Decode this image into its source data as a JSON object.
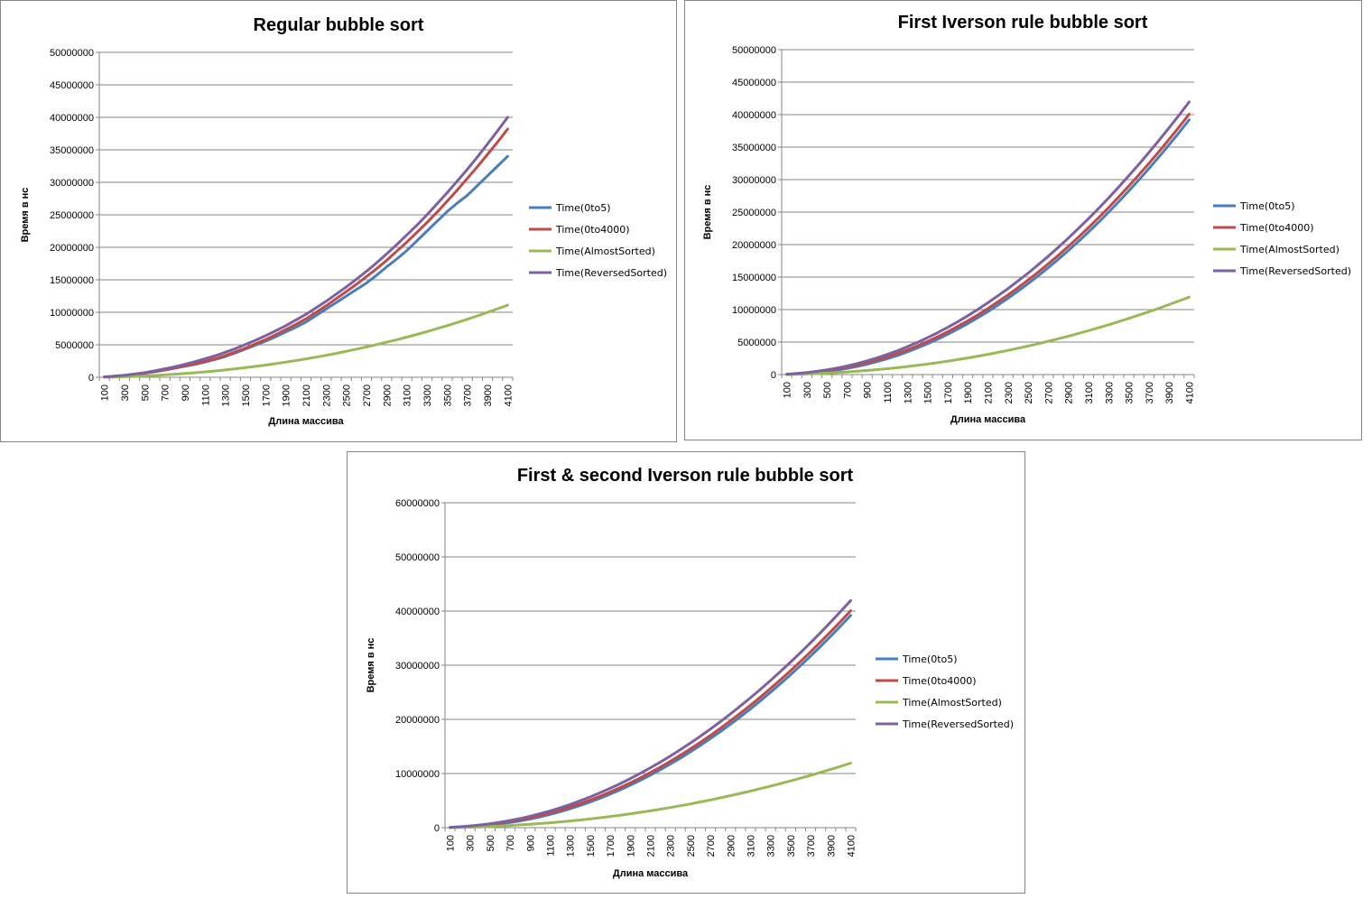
{
  "colors": {
    "s0": "#4a7ebb",
    "s1": "#be4b48",
    "s2": "#98b954",
    "s3": "#7d60a0",
    "grid": "#868686",
    "border": "#868686"
  },
  "chart_data": [
    {
      "type": "line",
      "title": "Regular bubble sort",
      "xlabel": "Длина массива",
      "ylabel": "Время в нс",
      "ylim": [
        0,
        50000000
      ],
      "yticks": [
        "0",
        "5000000",
        "10000000",
        "15000000",
        "20000000",
        "25000000",
        "30000000",
        "35000000",
        "40000000",
        "45000000",
        "50000000"
      ],
      "x_tick_labels": [
        "100",
        "300",
        "500",
        "700",
        "900",
        "1100",
        "1300",
        "1500",
        "1700",
        "1900",
        "2100",
        "2300",
        "2500",
        "2700",
        "2900",
        "3100",
        "3300",
        "3500",
        "3700",
        "3900",
        "4100"
      ],
      "x": [
        100,
        200,
        300,
        400,
        500,
        600,
        700,
        800,
        900,
        1000,
        1100,
        1200,
        1300,
        1400,
        1500,
        1600,
        1700,
        1800,
        1900,
        2000,
        2100,
        2200,
        2300,
        2400,
        2500,
        2600,
        2700,
        2800,
        2900,
        3000,
        3100,
        3200,
        3300,
        3400,
        3500,
        3600,
        3700,
        3800,
        3900,
        4000,
        4100
      ],
      "legend_position": "right",
      "grid": true,
      "series": [
        {
          "name": "Time(0to5)",
          "values": [
            50000,
            150000,
            250000,
            400000,
            600000,
            850000,
            1100000,
            1400000,
            1700000,
            2000000,
            2350000,
            2750000,
            3200000,
            3750000,
            4350000,
            4950000,
            5550000,
            6250000,
            7000000,
            7700000,
            8500000,
            9500000,
            10500000,
            11500000,
            12500000,
            13500000,
            14500000,
            15700000,
            17000000,
            18200000,
            19500000,
            21000000,
            22500000,
            24000000,
            25500000,
            26800000,
            28000000,
            29500000,
            31000000,
            32500000,
            34000000
          ]
        },
        {
          "name": "Time(0to4000)",
          "values": [
            50000,
            160000,
            270000,
            430000,
            640000,
            900000,
            1150000,
            1450000,
            1780000,
            2100000,
            2450000,
            2850000,
            3350000,
            3900000,
            4500000,
            5150000,
            5800000,
            6550000,
            7350000,
            8150000,
            9000000,
            10000000,
            11000000,
            12100000,
            13200000,
            14300000,
            15500000,
            16700000,
            18000000,
            19400000,
            20800000,
            22300000,
            23800000,
            25400000,
            27100000,
            28800000,
            30600000,
            32400000,
            34300000,
            36200000,
            38200000
          ]
        },
        {
          "name": "Time(AlmostSorted)",
          "values": [
            10000,
            40000,
            80000,
            130000,
            200000,
            280000,
            370000,
            470000,
            580000,
            700000,
            830000,
            970000,
            1130000,
            1300000,
            1480000,
            1680000,
            1880000,
            2100000,
            2330000,
            2570000,
            2830000,
            3100000,
            3380000,
            3680000,
            4000000,
            4330000,
            4670000,
            5030000,
            5400000,
            5780000,
            6180000,
            6600000,
            7030000,
            7480000,
            7950000,
            8430000,
            8930000,
            9450000,
            9990000,
            10540000,
            11100000
          ]
        },
        {
          "name": "Time(ReversedSorted)",
          "values": [
            60000,
            180000,
            320000,
            500000,
            720000,
            1000000,
            1300000,
            1620000,
            2000000,
            2400000,
            2850000,
            3300000,
            3850000,
            4400000,
            5050000,
            5700000,
            6400000,
            7150000,
            7950000,
            8800000,
            9700000,
            10700000,
            11700000,
            12800000,
            13900000,
            15100000,
            16300000,
            17600000,
            19000000,
            20400000,
            21900000,
            23400000,
            25000000,
            26700000,
            28400000,
            30200000,
            32000000,
            33900000,
            35900000,
            37900000,
            40000000
          ]
        }
      ]
    },
    {
      "type": "line",
      "title": "First Iverson rule bubble sort",
      "xlabel": "Длина массива",
      "ylabel": "Время в нс",
      "ylim": [
        0,
        50000000
      ],
      "yticks": [
        "0",
        "5000000",
        "10000000",
        "15000000",
        "20000000",
        "25000000",
        "30000000",
        "35000000",
        "40000000",
        "45000000",
        "50000000"
      ],
      "x_tick_labels": [
        "100",
        "300",
        "500",
        "700",
        "900",
        "1100",
        "1300",
        "1500",
        "1700",
        "1900",
        "2100",
        "2300",
        "2500",
        "2700",
        "2900",
        "3100",
        "3300",
        "3500",
        "3700",
        "3900",
        "4100"
      ],
      "x": [
        100,
        200,
        300,
        400,
        500,
        600,
        700,
        800,
        900,
        1000,
        1100,
        1200,
        1300,
        1400,
        1500,
        1600,
        1700,
        1800,
        1900,
        2000,
        2100,
        2200,
        2300,
        2400,
        2500,
        2600,
        2700,
        2800,
        2900,
        3000,
        3100,
        3200,
        3300,
        3400,
        3500,
        3600,
        3700,
        3800,
        3900,
        4000,
        4100
      ],
      "legend_position": "right",
      "grid": true,
      "series": [
        {
          "name": "Time(0to5)",
          "values": [
            30000,
            100000,
            200000,
            330000,
            500000,
            700000,
            950000,
            1250000,
            1600000,
            2000000,
            2450000,
            2950000,
            3500000,
            4100000,
            4750000,
            5450000,
            6200000,
            7000000,
            7850000,
            8750000,
            9700000,
            10700000,
            11750000,
            12850000,
            14000000,
            15200000,
            16450000,
            17750000,
            19100000,
            20500000,
            21950000,
            23450000,
            25000000,
            26600000,
            28250000,
            29950000,
            31700000,
            33500000,
            35350000,
            37250000,
            39200000
          ]
        },
        {
          "name": "Time(0to4000)",
          "values": [
            40000,
            130000,
            260000,
            420000,
            620000,
            860000,
            1140000,
            1460000,
            1830000,
            2250000,
            2720000,
            3240000,
            3810000,
            4430000,
            5100000,
            5820000,
            6590000,
            7410000,
            8280000,
            9200000,
            10170000,
            11190000,
            12260000,
            13380000,
            14550000,
            15770000,
            17040000,
            18360000,
            19730000,
            21150000,
            22620000,
            24140000,
            25710000,
            27330000,
            29000000,
            30720000,
            32490000,
            34310000,
            36180000,
            38100000,
            40070000
          ]
        },
        {
          "name": "Time(AlmostSorted)",
          "values": [
            10000,
            40000,
            80000,
            140000,
            220000,
            300000,
            400000,
            510000,
            630000,
            760000,
            900000,
            1060000,
            1230000,
            1420000,
            1620000,
            1830000,
            2060000,
            2300000,
            2560000,
            2830000,
            3110000,
            3410000,
            3720000,
            4050000,
            4390000,
            4750000,
            5120000,
            5510000,
            5910000,
            6330000,
            6760000,
            7210000,
            7670000,
            8150000,
            8640000,
            9150000,
            9670000,
            10210000,
            10760000,
            11330000,
            11910000
          ]
        },
        {
          "name": "Time(ReversedSorted)",
          "values": [
            50000,
            160000,
            310000,
            500000,
            730000,
            1000000,
            1320000,
            1690000,
            2110000,
            2580000,
            3100000,
            3670000,
            4290000,
            4960000,
            5680000,
            6450000,
            7270000,
            8140000,
            9060000,
            10030000,
            11050000,
            12120000,
            13240000,
            14410000,
            15630000,
            16900000,
            18220000,
            19590000,
            21010000,
            22480000,
            24000000,
            25570000,
            27190000,
            28860000,
            30580000,
            32350000,
            34170000,
            36040000,
            37960000,
            39930000,
            41950000
          ]
        }
      ]
    },
    {
      "type": "line",
      "title": "First & second Iverson rule bubble sort",
      "xlabel": "Длина массива",
      "ylabel": "Время в нс",
      "ylim": [
        0,
        60000000
      ],
      "yticks": [
        "0",
        "10000000",
        "20000000",
        "30000000",
        "40000000",
        "50000000",
        "60000000"
      ],
      "x_tick_labels": [
        "100",
        "300",
        "500",
        "700",
        "900",
        "1100",
        "1300",
        "1500",
        "1700",
        "1900",
        "2100",
        "2300",
        "2500",
        "2700",
        "2900",
        "3100",
        "3300",
        "3500",
        "3700",
        "3900",
        "4100"
      ],
      "x": [
        100,
        200,
        300,
        400,
        500,
        600,
        700,
        800,
        900,
        1000,
        1100,
        1200,
        1300,
        1400,
        1500,
        1600,
        1700,
        1800,
        1900,
        2000,
        2100,
        2200,
        2300,
        2400,
        2500,
        2600,
        2700,
        2800,
        2900,
        3000,
        3100,
        3200,
        3300,
        3400,
        3500,
        3600,
        3700,
        3800,
        3900,
        4000,
        4100
      ],
      "legend_position": "right",
      "grid": true,
      "series": [
        {
          "name": "Time(0to5)",
          "values": [
            30000,
            100000,
            200000,
            330000,
            500000,
            700000,
            950000,
            1250000,
            1600000,
            2000000,
            2450000,
            2950000,
            3500000,
            4100000,
            4750000,
            5450000,
            6200000,
            7000000,
            7850000,
            8750000,
            9700000,
            10700000,
            11750000,
            12850000,
            14000000,
            15200000,
            16450000,
            17750000,
            19100000,
            20500000,
            21950000,
            23450000,
            25000000,
            26600000,
            28250000,
            29950000,
            31700000,
            33500000,
            35350000,
            37250000,
            39200000
          ]
        },
        {
          "name": "Time(0to4000)",
          "values": [
            40000,
            130000,
            260000,
            420000,
            620000,
            860000,
            1140000,
            1460000,
            1830000,
            2250000,
            2720000,
            3240000,
            3810000,
            4430000,
            5100000,
            5820000,
            6590000,
            7410000,
            8280000,
            9200000,
            10170000,
            11190000,
            12260000,
            13380000,
            14550000,
            15770000,
            17040000,
            18360000,
            19730000,
            21150000,
            22620000,
            24140000,
            25710000,
            27330000,
            29000000,
            30720000,
            32490000,
            34310000,
            36180000,
            38100000,
            40070000
          ]
        },
        {
          "name": "Time(AlmostSorted)",
          "values": [
            10000,
            40000,
            80000,
            140000,
            220000,
            300000,
            400000,
            510000,
            630000,
            760000,
            900000,
            1060000,
            1230000,
            1420000,
            1620000,
            1830000,
            2060000,
            2300000,
            2560000,
            2830000,
            3110000,
            3410000,
            3720000,
            4050000,
            4390000,
            4750000,
            5120000,
            5510000,
            5910000,
            6330000,
            6760000,
            7210000,
            7670000,
            8150000,
            8640000,
            9150000,
            9670000,
            10210000,
            10760000,
            11330000,
            11910000
          ]
        },
        {
          "name": "Time(ReversedSorted)",
          "values": [
            50000,
            160000,
            310000,
            500000,
            730000,
            1000000,
            1320000,
            1690000,
            2110000,
            2580000,
            3100000,
            3670000,
            4290000,
            4960000,
            5680000,
            6450000,
            7270000,
            8140000,
            9060000,
            10030000,
            11050000,
            12120000,
            13240000,
            14410000,
            15630000,
            16900000,
            18220000,
            19590000,
            21010000,
            22480000,
            24000000,
            25570000,
            27190000,
            28860000,
            30580000,
            32350000,
            34170000,
            36040000,
            37960000,
            39930000,
            41950000
          ]
        }
      ]
    }
  ]
}
